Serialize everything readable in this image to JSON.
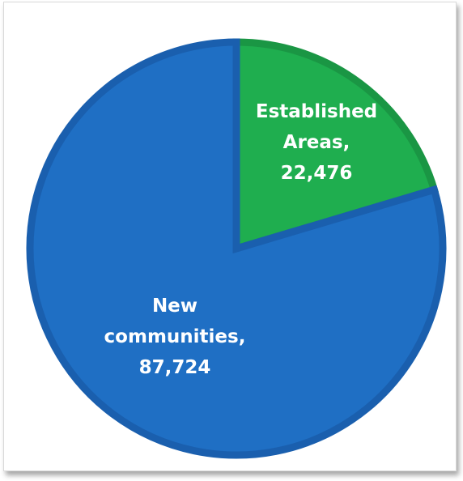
{
  "chart_data": {
    "type": "pie",
    "title": "",
    "slices": [
      {
        "label": "Established Areas",
        "value": 22476,
        "label_lines": [
          "Established",
          "Areas,",
          "22,476"
        ],
        "color": "#1fae4f",
        "edge_color": "#1a9644"
      },
      {
        "label": "New communities",
        "value": 87724,
        "label_lines": [
          "New",
          "communities,",
          "87,724"
        ],
        "color": "#1f6fc4",
        "edge_color": "#1a5fae"
      }
    ],
    "start_angle": "12 o'clock",
    "direction": "clockwise",
    "legend": "none"
  }
}
